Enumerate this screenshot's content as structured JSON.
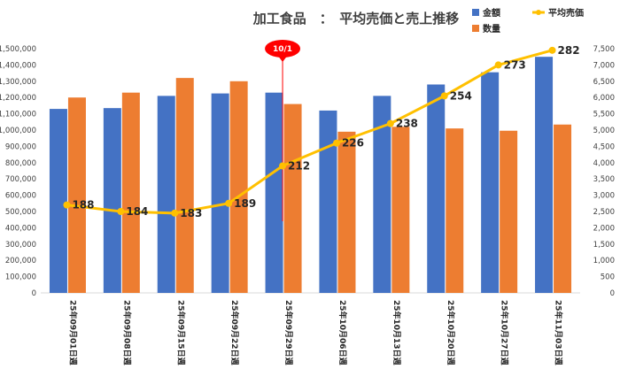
{
  "chart_data": {
    "type": "bar",
    "title": "加工食品　：　平均売価と売上推移",
    "categories": [
      "25年09月01日週",
      "25年09月08日週",
      "25年09月15日週",
      "25年09月22日週",
      "25年09月29日週",
      "25年10月06日週",
      "25年10月13日週",
      "25年10月20日週",
      "25年10月27日週",
      "25年11月03日週"
    ],
    "series": [
      {
        "name": "金額",
        "type": "bar",
        "axis": "left",
        "color": "#4472C4",
        "values": [
          1130000,
          1135000,
          1210000,
          1225000,
          1230000,
          1120000,
          1210000,
          1280000,
          1355000,
          1450000
        ]
      },
      {
        "name": "数量",
        "type": "bar",
        "axis": "right",
        "color": "#ED7D31",
        "values": [
          6000,
          6150,
          6600,
          6500,
          5800,
          4950,
          5100,
          5050,
          4980,
          5170
        ]
      },
      {
        "name": "平均売価",
        "type": "line",
        "axis": "right",
        "color": "#FFC000",
        "values": [
          188,
          184,
          183,
          189,
          212,
          226,
          238,
          254,
          273,
          282
        ],
        "display_values": [
          2700,
          2500,
          2450,
          2750,
          3900,
          4600,
          5200,
          6050,
          7000,
          7450
        ]
      }
    ],
    "y_left": {
      "min": 0,
      "max": 1500000,
      "step": 100000,
      "ticks": [
        "0",
        "100,000",
        "200,000",
        "300,000",
        "400,000",
        "500,000",
        "600,000",
        "700,000",
        "800,000",
        "900,000",
        "1,000,000",
        "1,100,000",
        "1,200,000",
        "1,300,000",
        "1,400,000",
        "1,500,000"
      ]
    },
    "y_right": {
      "min": 0,
      "max": 7500,
      "step": 500,
      "ticks": [
        "0",
        "500",
        "1,000",
        "1,500",
        "2,000",
        "2,500",
        "3,000",
        "3,500",
        "4,000",
        "4,500",
        "5,000",
        "5,500",
        "6,000",
        "6,500",
        "7,000",
        "7,500"
      ]
    },
    "marker": {
      "label": "10/1",
      "category_index": 4,
      "color": "#FF0000"
    },
    "legend": {
      "position": "top-right"
    },
    "grid": false
  }
}
